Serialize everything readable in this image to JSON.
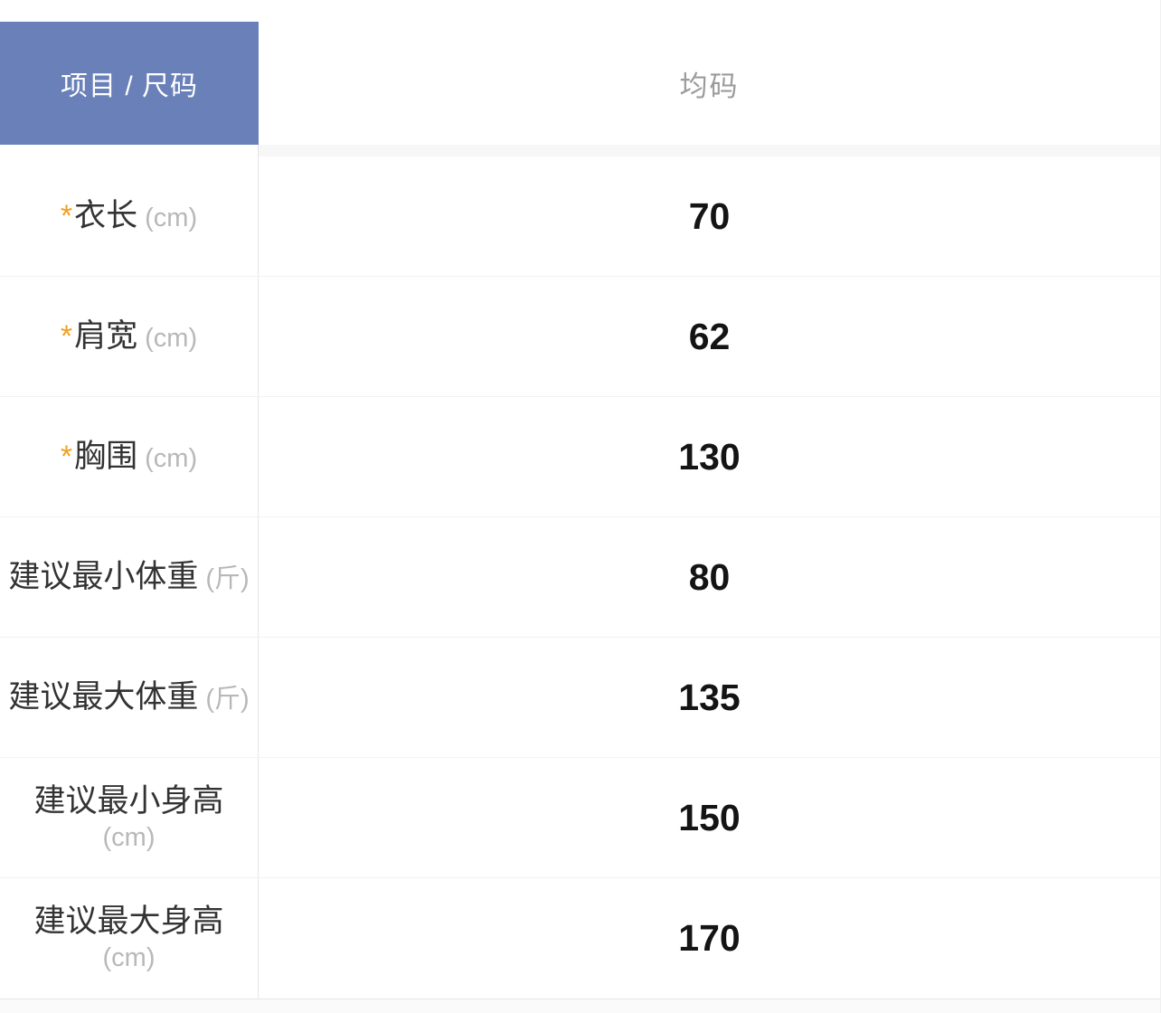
{
  "table": {
    "corner_header": "项目 / 尺码",
    "column_header": "均码",
    "required_marker": "*",
    "rows": [
      {
        "required": true,
        "label": "衣长",
        "unit": "(cm)",
        "value": "70"
      },
      {
        "required": true,
        "label": "肩宽",
        "unit": "(cm)",
        "value": "62"
      },
      {
        "required": true,
        "label": "胸围",
        "unit": "(cm)",
        "value": "130"
      },
      {
        "required": false,
        "label": "建议最小体重",
        "unit": "(斤)",
        "value": "80"
      },
      {
        "required": false,
        "label": "建议最大体重",
        "unit": "(斤)",
        "value": "135"
      },
      {
        "required": false,
        "label": "建议最小身高",
        "unit": "(cm)",
        "value": "150"
      },
      {
        "required": false,
        "label": "建议最大身高",
        "unit": "(cm)",
        "value": "170"
      }
    ],
    "colors": {
      "header_bg": "#6980B9",
      "header_text": "#FFFFFF",
      "column_header_text": "#9B9B9B",
      "label_text": "#333333",
      "unit_text": "#B8B8B8",
      "value_text": "#141414",
      "required_marker": "#F0A125"
    }
  }
}
